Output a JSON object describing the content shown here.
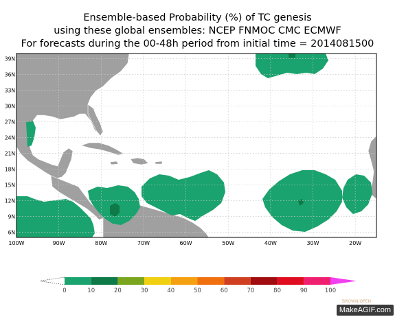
{
  "title": {
    "line1": "Ensemble-based Probability (%) of TC genesis",
    "line2": "using these global ensembles:   NCEP FNMOC CMC ECMWF",
    "line3": "For forecasts during the 00-48h period from initial time = 2014081500"
  },
  "map": {
    "lon_labels": [
      "100W",
      "90W",
      "80W",
      "70W",
      "60W",
      "50W",
      "40W",
      "30W",
      "20W"
    ],
    "lat_labels": [
      "39N",
      "36N",
      "33N",
      "30N",
      "27N",
      "24N",
      "21N",
      "18N",
      "15N",
      "12N",
      "9N",
      "6N"
    ],
    "lon_range": [
      -100,
      -15
    ],
    "lat_range": [
      5,
      40
    ],
    "grid": "dotted",
    "land_color": "#a0a0a0",
    "ocean_color": "#ffffff"
  },
  "probability_areas": [
    {
      "region": "off-us-northeast",
      "level": "0-10",
      "color": "#1aa36e"
    },
    {
      "region": "western-gulf-coast",
      "level": "0-10",
      "color": "#1aa36e"
    },
    {
      "region": "eastern-pacific",
      "level": "0-10",
      "color": "#1aa36e"
    },
    {
      "region": "southwest-caribbean",
      "level": "0-10",
      "color": "#1aa36e"
    },
    {
      "region": "eastern-caribbean",
      "level": "0-10",
      "color": "#1aa36e"
    },
    {
      "region": "central-atlantic",
      "level": "0-10",
      "color": "#1aa36e"
    },
    {
      "region": "eastern-atlantic",
      "level": "0-10",
      "color": "#1aa36e"
    }
  ],
  "colorbar": {
    "labels": [
      "0",
      "10",
      "20",
      "30",
      "40",
      "50",
      "60",
      "70",
      "80",
      "90",
      "100"
    ],
    "colors": [
      "#1aa36e",
      "#0d7a48",
      "#7aa51e",
      "#f0d010",
      "#f5a010",
      "#f07010",
      "#d04020",
      "#a00c10",
      "#e00c20",
      "#f02070",
      "#f040f0"
    ]
  },
  "watermark": "MakeAGIF.com",
  "credit": "BROWN/OPEN"
}
